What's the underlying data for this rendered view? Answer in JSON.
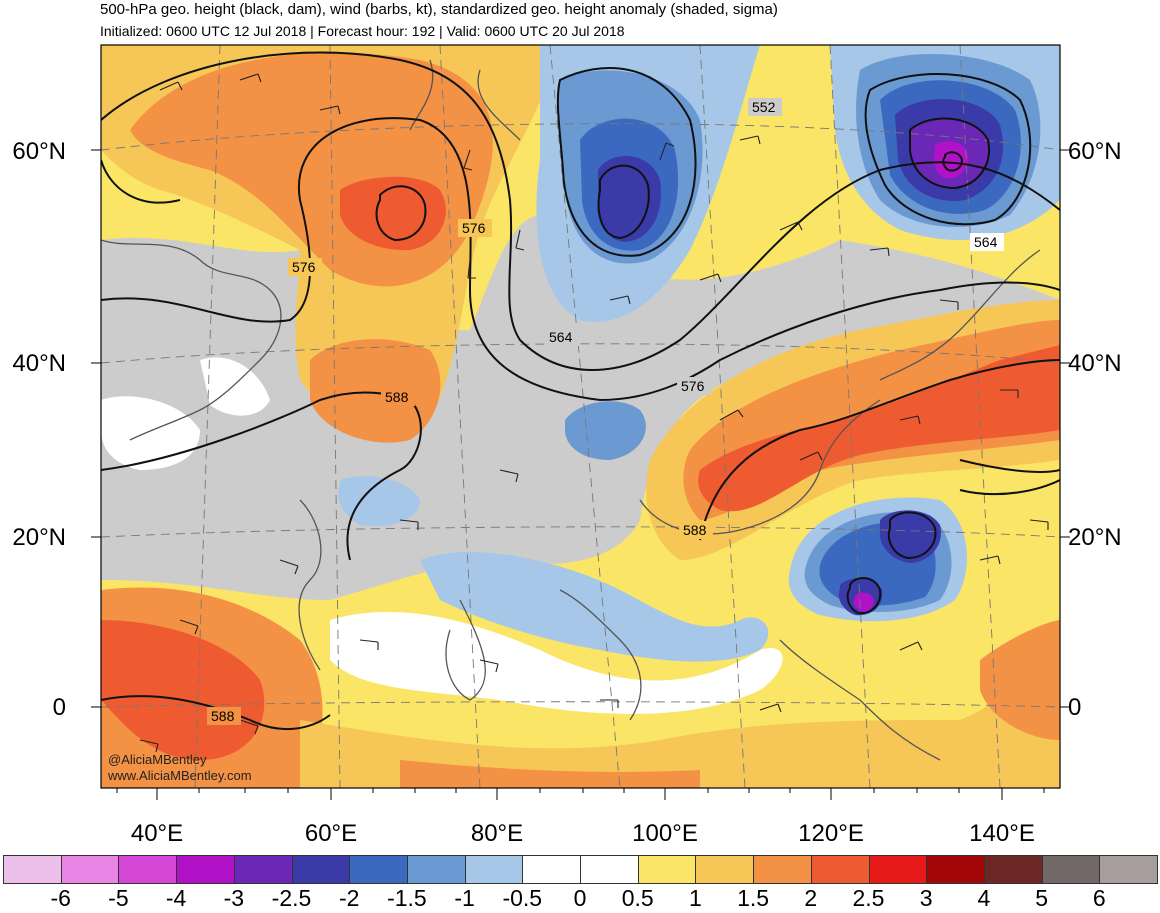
{
  "header": {
    "title": "500-hPa geo. height (black, dam), wind (barbs, kt), standardized geo. height anomaly (shaded, sigma)",
    "subtitle": "Initialized: 0600 UTC 12 Jul 2018 | Forecast hour: 192 | Valid: 0600 UTC 20 Jul 2018"
  },
  "axes": {
    "lat_labels": [
      "60°N",
      "40°N",
      "20°N",
      "0"
    ],
    "lon_labels": [
      "40°E",
      "60°E",
      "80°E",
      "100°E",
      "120°E",
      "140°E"
    ]
  },
  "contour_labels": [
    "552",
    "564",
    "564",
    "576",
    "576",
    "576",
    "588",
    "588",
    "588"
  ],
  "colorbar": {
    "labels": [
      "-6",
      "-5",
      "-4",
      "-3",
      "-2.5",
      "-2",
      "-1.5",
      "-1",
      "-0.5",
      "0",
      "0.5",
      "1",
      "1.5",
      "2",
      "2.5",
      "3",
      "4",
      "5",
      "6"
    ],
    "colors": [
      "#ecc0ea",
      "#e985e4",
      "#d548d7",
      "#b112c7",
      "#6b28b6",
      "#3a3aa8",
      "#3b69c0",
      "#6b99d2",
      "#a6c7e8",
      "#ffffff",
      "#ffffff",
      "#fbe566",
      "#f6c657",
      "#f39145",
      "#ef5b30",
      "#e61a18",
      "#a40707",
      "#6d2724",
      "#736868",
      "#a89d9d"
    ]
  },
  "credits": {
    "handle": "@AliciaMBentley",
    "website": "www.AliciaMBentley.com"
  },
  "palette": {
    "land_gray": "#cccccc",
    "contour": "#111111",
    "coast": "#555555"
  }
}
